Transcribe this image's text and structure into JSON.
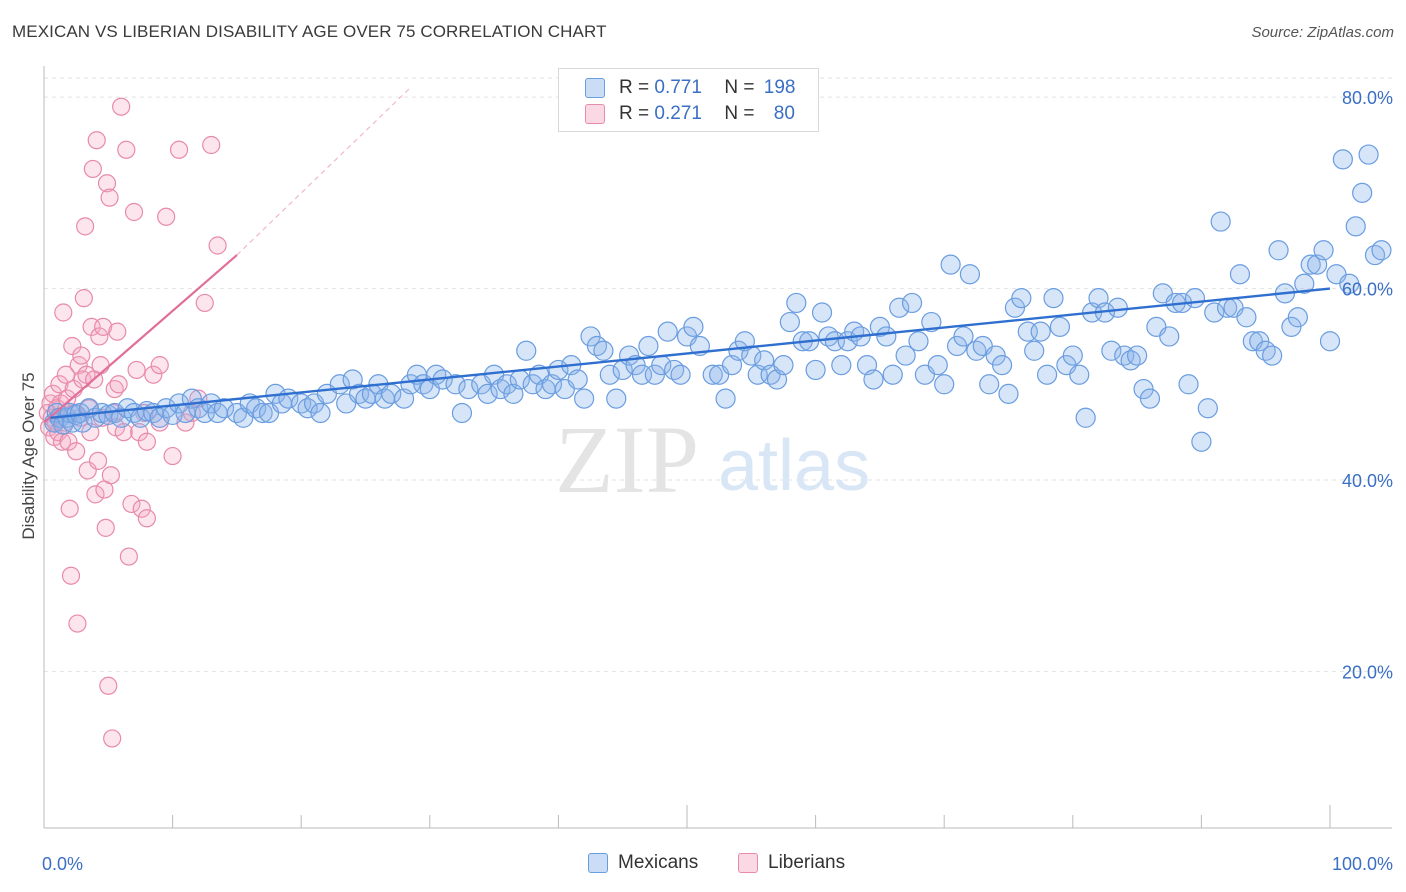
{
  "title": "MEXICAN VS LIBERIAN DISABILITY AGE OVER 75 CORRELATION CHART",
  "source": "Source: ZipAtlas.com",
  "watermark": {
    "zip": "ZIP",
    "atlas": "atlas"
  },
  "colors": {
    "blue": "#6a9de0",
    "blue_fill": "rgba(140,180,235,0.35)",
    "blue_line": "#2f6fd0",
    "pink": "#e88aaa",
    "pink_fill": "rgba(245,170,195,0.30)",
    "pink_line": "#e0709a",
    "axis_text": "#3a6fc4",
    "grid": "#e2e2e2"
  },
  "legend": {
    "rows": [
      {
        "r_label": "R = ",
        "r_value": "0.771",
        "n_label": "N = ",
        "n_value": "198"
      },
      {
        "r_label": "R = ",
        "r_value": "0.271",
        "n_label": "N = ",
        "n_value": "80"
      }
    ],
    "series": [
      "Mexicans",
      "Liberians"
    ]
  },
  "chart_data": {
    "type": "scatter",
    "title": "MEXICAN VS LIBERIAN DISABILITY AGE OVER 75 CORRELATION CHART",
    "xlabel": "",
    "ylabel": "Disability Age Over 75",
    "xlim": [
      0,
      100
    ],
    "ylim": [
      5,
      82
    ],
    "x_tick_labels": [
      "0.0%",
      "100.0%"
    ],
    "y_ticks": [
      20,
      40,
      60,
      80
    ],
    "y_tick_labels": [
      "20.0%",
      "40.0%",
      "60.0%",
      "80.0%"
    ],
    "grid": true,
    "legend_position": "top-center",
    "series": [
      {
        "name": "Mexicans",
        "r": 0.771,
        "n": 198,
        "trend": {
          "x": [
            0.5,
            100
          ],
          "y": [
            46.5,
            60.0
          ]
        },
        "points": [
          [
            0.8,
            46
          ],
          [
            1,
            47
          ],
          [
            1.2,
            46.5
          ],
          [
            1.5,
            45.8
          ],
          [
            1.8,
            46.5
          ],
          [
            2,
            47
          ],
          [
            2.2,
            46
          ],
          [
            2.5,
            46.8
          ],
          [
            2.8,
            47
          ],
          [
            3,
            46
          ],
          [
            3.5,
            47.5
          ],
          [
            4,
            46.5
          ],
          [
            4.5,
            47
          ],
          [
            5,
            46.8
          ],
          [
            5.5,
            47
          ],
          [
            6,
            46.5
          ],
          [
            6.5,
            47.5
          ],
          [
            7,
            47
          ],
          [
            7.5,
            46.5
          ],
          [
            8,
            47.2
          ],
          [
            8.5,
            47
          ],
          [
            9,
            46.5
          ],
          [
            9.5,
            47.5
          ],
          [
            10,
            46.8
          ],
          [
            10.5,
            48
          ],
          [
            11,
            47
          ],
          [
            11.5,
            48.5
          ],
          [
            12,
            47.5
          ],
          [
            12.5,
            47
          ],
          [
            13,
            48
          ],
          [
            13.5,
            47
          ],
          [
            14,
            47.5
          ],
          [
            15,
            47
          ],
          [
            15.5,
            46.5
          ],
          [
            16,
            48
          ],
          [
            16.5,
            47.5
          ],
          [
            17,
            47
          ],
          [
            17.5,
            47
          ],
          [
            18,
            49
          ],
          [
            18.5,
            48
          ],
          [
            19,
            48.5
          ],
          [
            20,
            48
          ],
          [
            20.5,
            47.5
          ],
          [
            21,
            48
          ],
          [
            21.5,
            47
          ],
          [
            22,
            49
          ],
          [
            23,
            50
          ],
          [
            23.5,
            48
          ],
          [
            24,
            50.5
          ],
          [
            24.5,
            49
          ],
          [
            25,
            48.5
          ],
          [
            25.5,
            49
          ],
          [
            26,
            50
          ],
          [
            26.5,
            48.5
          ],
          [
            27,
            49
          ],
          [
            28,
            48.5
          ],
          [
            28.5,
            50
          ],
          [
            29,
            51
          ],
          [
            29.5,
            50
          ],
          [
            30,
            49.5
          ],
          [
            30.5,
            51
          ],
          [
            31,
            50.5
          ],
          [
            32,
            50
          ],
          [
            32.5,
            47
          ],
          [
            33,
            49.5
          ],
          [
            34,
            50
          ],
          [
            34.5,
            49
          ],
          [
            35,
            51
          ],
          [
            35.5,
            49.5
          ],
          [
            36,
            50
          ],
          [
            36.5,
            49
          ],
          [
            37,
            50.5
          ],
          [
            37.5,
            53.5
          ],
          [
            38,
            50
          ],
          [
            38.5,
            51
          ],
          [
            39,
            49.5
          ],
          [
            39.5,
            50
          ],
          [
            40,
            51.5
          ],
          [
            40.5,
            49.5
          ],
          [
            41,
            52
          ],
          [
            41.5,
            50.5
          ],
          [
            42,
            48.5
          ],
          [
            42.5,
            55
          ],
          [
            43,
            54
          ],
          [
            43.5,
            53.5
          ],
          [
            44,
            51
          ],
          [
            44.5,
            48.5
          ],
          [
            45,
            51.5
          ],
          [
            45.5,
            53
          ],
          [
            46,
            52
          ],
          [
            46.5,
            51
          ],
          [
            47,
            54
          ],
          [
            47.5,
            51
          ],
          [
            48,
            52
          ],
          [
            48.5,
            55.5
          ],
          [
            49,
            51.5
          ],
          [
            49.5,
            51
          ],
          [
            50,
            55
          ],
          [
            50.5,
            56
          ],
          [
            51,
            54
          ],
          [
            52,
            51
          ],
          [
            52.5,
            51
          ],
          [
            53,
            48.5
          ],
          [
            53.5,
            52
          ],
          [
            54,
            53.5
          ],
          [
            54.5,
            54.5
          ],
          [
            55,
            53
          ],
          [
            55.5,
            51
          ],
          [
            56,
            52.5
          ],
          [
            56.5,
            51
          ],
          [
            57,
            50.5
          ],
          [
            57.5,
            52
          ],
          [
            58,
            56.5
          ],
          [
            58.5,
            58.5
          ],
          [
            59,
            54.5
          ],
          [
            59.5,
            54.5
          ],
          [
            60,
            51.5
          ],
          [
            60.5,
            57.5
          ],
          [
            61,
            55
          ],
          [
            61.5,
            54.5
          ],
          [
            62,
            52
          ],
          [
            62.5,
            54.5
          ],
          [
            63,
            55.5
          ],
          [
            63.5,
            55
          ],
          [
            64,
            52
          ],
          [
            64.5,
            50.5
          ],
          [
            65,
            56
          ],
          [
            65.5,
            55
          ],
          [
            66,
            51
          ],
          [
            66.5,
            58
          ],
          [
            67,
            53
          ],
          [
            67.5,
            58.5
          ],
          [
            68,
            54.5
          ],
          [
            68.5,
            51
          ],
          [
            69,
            56.5
          ],
          [
            69.5,
            52
          ],
          [
            70,
            50
          ],
          [
            70.5,
            62.5
          ],
          [
            71,
            54
          ],
          [
            71.5,
            55
          ],
          [
            72,
            61.5
          ],
          [
            72.5,
            53.5
          ],
          [
            73,
            54
          ],
          [
            73.5,
            50
          ],
          [
            74,
            53
          ],
          [
            74.5,
            52
          ],
          [
            75,
            49
          ],
          [
            75.5,
            58
          ],
          [
            76,
            59
          ],
          [
            76.5,
            55.5
          ],
          [
            77,
            53.5
          ],
          [
            77.5,
            55.5
          ],
          [
            78,
            51
          ],
          [
            78.5,
            59
          ],
          [
            79,
            56
          ],
          [
            79.5,
            52
          ],
          [
            80,
            53
          ],
          [
            80.5,
            51
          ],
          [
            81,
            46.5
          ],
          [
            81.5,
            57.5
          ],
          [
            82,
            59
          ],
          [
            82.5,
            57.5
          ],
          [
            83,
            53.5
          ],
          [
            83.5,
            58
          ],
          [
            84,
            53
          ],
          [
            84.5,
            52.5
          ],
          [
            85,
            53
          ],
          [
            85.5,
            49.5
          ],
          [
            86,
            48.5
          ],
          [
            86.5,
            56
          ],
          [
            87,
            59.5
          ],
          [
            87.5,
            55
          ],
          [
            88,
            58.5
          ],
          [
            88.5,
            58.5
          ],
          [
            89,
            50
          ],
          [
            89.5,
            59
          ],
          [
            90,
            44
          ],
          [
            90.5,
            47.5
          ],
          [
            91,
            57.5
          ],
          [
            91.5,
            67
          ],
          [
            92,
            58
          ],
          [
            92.5,
            58
          ],
          [
            93,
            61.5
          ],
          [
            93.5,
            57
          ],
          [
            94,
            54.5
          ],
          [
            94.5,
            54.5
          ],
          [
            95,
            53.5
          ],
          [
            95.5,
            53
          ],
          [
            96,
            64
          ],
          [
            96.5,
            59.5
          ],
          [
            97,
            56
          ],
          [
            97.5,
            57
          ],
          [
            98,
            60.5
          ],
          [
            98.5,
            62.5
          ],
          [
            99,
            62.5
          ],
          [
            99.5,
            64
          ],
          [
            100,
            54.5
          ],
          [
            100.5,
            61.5
          ],
          [
            101,
            73.5
          ],
          [
            101.5,
            60.5
          ],
          [
            102,
            66.5
          ],
          [
            102.5,
            70
          ],
          [
            103,
            74
          ],
          [
            103.5,
            63.5
          ],
          [
            104,
            64
          ]
        ]
      },
      {
        "name": "Liberians",
        "r": 0.271,
        "n": 80,
        "trend": {
          "x": [
            0,
            15
          ],
          "y": [
            46,
            63.5
          ]
        },
        "trend_extension": {
          "x": [
            15,
            28.5
          ],
          "y": [
            63.5,
            81
          ]
        },
        "points": [
          [
            0.3,
            47
          ],
          [
            0.4,
            45.5
          ],
          [
            0.5,
            48
          ],
          [
            0.6,
            46.5
          ],
          [
            0.7,
            49
          ],
          [
            0.8,
            44.5
          ],
          [
            0.9,
            46
          ],
          [
            1,
            47.5
          ],
          [
            1.1,
            45
          ],
          [
            1.2,
            50
          ],
          [
            1.3,
            48
          ],
          [
            1.4,
            44
          ],
          [
            1.5,
            57.5
          ],
          [
            1.6,
            46
          ],
          [
            1.7,
            51
          ],
          [
            1.8,
            48.5
          ],
          [
            1.9,
            44
          ],
          [
            2,
            37
          ],
          [
            2.1,
            30
          ],
          [
            2.2,
            54
          ],
          [
            2.3,
            49.5
          ],
          [
            2.4,
            47
          ],
          [
            2.5,
            43
          ],
          [
            2.6,
            25
          ],
          [
            2.7,
            52
          ],
          [
            2.8,
            46.5
          ],
          [
            2.9,
            53
          ],
          [
            3,
            50.5
          ],
          [
            3.1,
            59
          ],
          [
            3.2,
            66.5
          ],
          [
            3.3,
            51
          ],
          [
            3.4,
            41
          ],
          [
            3.5,
            47.5
          ],
          [
            3.6,
            45
          ],
          [
            3.7,
            56
          ],
          [
            3.8,
            72.5
          ],
          [
            3.9,
            50.5
          ],
          [
            4,
            38.5
          ],
          [
            4.1,
            75.5
          ],
          [
            4.2,
            42
          ],
          [
            4.3,
            55
          ],
          [
            4.4,
            52
          ],
          [
            4.5,
            46.5
          ],
          [
            4.6,
            56
          ],
          [
            4.7,
            39
          ],
          [
            4.8,
            35
          ],
          [
            4.9,
            71
          ],
          [
            5,
            18.5
          ],
          [
            5.1,
            69.5
          ],
          [
            5.2,
            40.5
          ],
          [
            5.3,
            13
          ],
          [
            5.4,
            47
          ],
          [
            5.5,
            49.5
          ],
          [
            5.6,
            45.5
          ],
          [
            5.7,
            55.5
          ],
          [
            5.8,
            50
          ],
          [
            6,
            79
          ],
          [
            6.2,
            45
          ],
          [
            6.4,
            74.5
          ],
          [
            6.6,
            32
          ],
          [
            6.8,
            37.5
          ],
          [
            7,
            68
          ],
          [
            7.2,
            51.5
          ],
          [
            7.4,
            45
          ],
          [
            7.6,
            37
          ],
          [
            7.8,
            47
          ],
          [
            8,
            36
          ],
          [
            8.5,
            51
          ],
          [
            9,
            52
          ],
          [
            9.5,
            67.5
          ],
          [
            10,
            42.5
          ],
          [
            10.5,
            74.5
          ],
          [
            11,
            46
          ],
          [
            11.5,
            47
          ],
          [
            12,
            48.5
          ],
          [
            12.5,
            58.5
          ],
          [
            13,
            75
          ],
          [
            13.5,
            64.5
          ],
          [
            9,
            46
          ],
          [
            8,
            44
          ]
        ]
      }
    ]
  }
}
